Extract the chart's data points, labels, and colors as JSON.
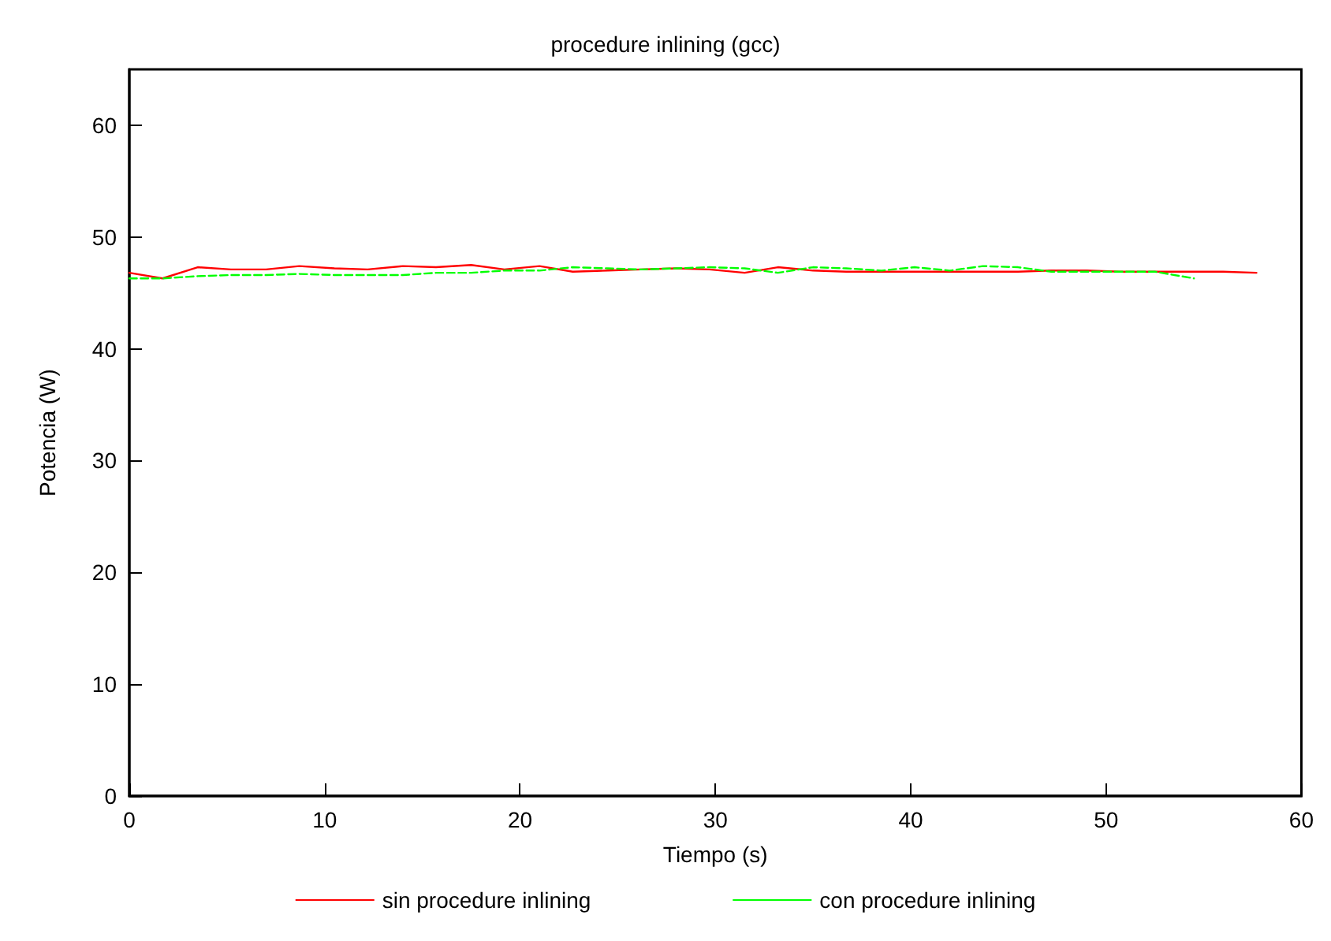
{
  "chart_data": {
    "type": "line",
    "title": "procedure inlining (gcc)",
    "xlabel": "Tiempo (s)",
    "ylabel": "Potencia (W)",
    "xlim": [
      0,
      60
    ],
    "xticks": [
      0,
      10,
      20,
      30,
      40,
      50,
      60
    ],
    "ylim": [
      0,
      65
    ],
    "yticks": [
      0,
      10,
      20,
      30,
      40,
      50,
      60
    ],
    "grid": false,
    "legend": "bottom",
    "marker": "none",
    "series": [
      {
        "name": "sin procedure inlining",
        "color": "#ff0000",
        "line_style": "solid",
        "x": [
          0,
          1.7,
          3.5,
          5.2,
          7,
          8.7,
          10.5,
          12.2,
          14,
          15.7,
          17.5,
          19.2,
          21,
          22.7,
          24.5,
          26.2,
          28,
          29.7,
          31.5,
          33.2,
          35,
          36.7,
          38.5,
          40.2,
          42,
          43.7,
          45.5,
          47.2,
          49,
          50.7,
          52.5,
          54.2,
          56,
          57.7
        ],
        "values": [
          46.8,
          46.3,
          47.3,
          47.1,
          47.1,
          47.4,
          47.2,
          47.1,
          47.4,
          47.3,
          47.5,
          47.1,
          47.4,
          46.9,
          47.0,
          47.1,
          47.2,
          47.1,
          46.8,
          47.3,
          47.0,
          46.9,
          46.9,
          46.9,
          46.9,
          46.9,
          46.9,
          47.0,
          47.0,
          46.9,
          46.9,
          46.9,
          46.9,
          46.8
        ]
      },
      {
        "name": "con procedure inlining",
        "color": "#00ff00",
        "line_style": "dashed",
        "x": [
          0,
          1.7,
          3.5,
          5.2,
          7,
          8.7,
          10.5,
          12.2,
          14,
          15.7,
          17.5,
          19.2,
          21,
          22.7,
          24.5,
          26.2,
          28,
          29.7,
          31.5,
          33.2,
          35,
          36.7,
          38.5,
          40.2,
          42,
          43.7,
          45.5,
          47.2,
          49,
          50.7,
          52.5,
          54.5
        ],
        "values": [
          46.3,
          46.3,
          46.5,
          46.6,
          46.6,
          46.7,
          46.6,
          46.6,
          46.6,
          46.8,
          46.8,
          47.0,
          47.0,
          47.3,
          47.2,
          47.1,
          47.2,
          47.3,
          47.2,
          46.8,
          47.3,
          47.2,
          47.0,
          47.3,
          47.0,
          47.4,
          47.3,
          46.9,
          46.9,
          46.9,
          46.9,
          46.3
        ]
      }
    ]
  }
}
